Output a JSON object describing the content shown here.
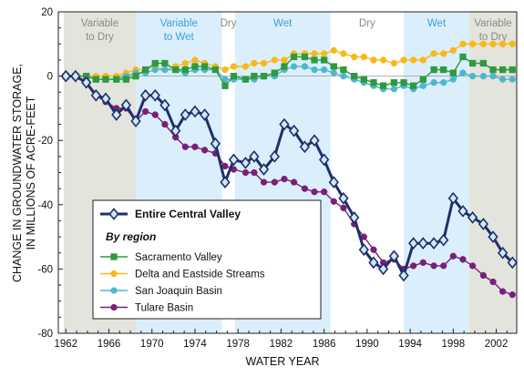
{
  "chart_data": {
    "type": "line",
    "xlabel": "WATER YEAR",
    "ylabel_lines": [
      "CHANGE IN GROUNDWATER STORAGE,",
      "IN MILLIONS OF ACRE-FEET"
    ],
    "xlim": [
      1961.3,
      2003.9
    ],
    "ylim": [
      -80,
      20
    ],
    "xticks": [
      1962,
      1966,
      1970,
      1974,
      1978,
      1982,
      1986,
      1990,
      1994,
      1998,
      2002
    ],
    "yticks": [
      -80,
      -60,
      -40,
      -20,
      0,
      20
    ],
    "periods": [
      {
        "label_lines": [
          "Variable",
          "to Dry"
        ],
        "start": 1961.8,
        "end": 1968.5,
        "fill": "#e3e4dc",
        "text_color": "#8a8a84"
      },
      {
        "label_lines": [
          "Variable",
          "to Wet"
        ],
        "start": 1968.5,
        "end": 1976.5,
        "fill": "#dbeefc",
        "text_color": "#3aa0dd"
      },
      {
        "label_lines": [
          "Dry"
        ],
        "start": 1976.5,
        "end": 1977.7,
        "fill": "#ffffff",
        "text_color": "#8a8a84"
      },
      {
        "label_lines": [
          "Wet"
        ],
        "start": 1977.7,
        "end": 1986.6,
        "fill": "#dbeefc",
        "text_color": "#3aa0dd"
      },
      {
        "label_lines": [
          "Dry"
        ],
        "start": 1986.6,
        "end": 1993.4,
        "fill": "#ffffff",
        "text_color": "#8a8a84"
      },
      {
        "label_lines": [
          "Wet"
        ],
        "start": 1993.4,
        "end": 1999.5,
        "fill": "#dbeefc",
        "text_color": "#3aa0dd"
      },
      {
        "label_lines": [
          "Variable",
          "to Dry"
        ],
        "start": 1999.5,
        "end": 2003.9,
        "fill": "#e3e4dc",
        "text_color": "#8a8a84"
      }
    ],
    "legend": {
      "title": "Entire Central Valley",
      "group_label": "By region",
      "placement": "lower-left"
    },
    "series": [
      {
        "name": "Entire Central Valley",
        "color": "#1f2f6b",
        "marker": "diamond",
        "bold": true,
        "x": [
          1962.0,
          1962.9,
          1963.9,
          1964.8,
          1965.7,
          1966.7,
          1967.6,
          1968.5,
          1969.4,
          1970.3,
          1971.2,
          1972.2,
          1973.1,
          1974.0,
          1974.9,
          1975.9,
          1976.8,
          1977.6,
          1978.7,
          1979.5,
          1980.4,
          1981.4,
          1982.3,
          1983.2,
          1984.2,
          1985.1,
          1986.0,
          1986.9,
          1987.8,
          1988.8,
          1989.7,
          1990.6,
          1991.5,
          1992.5,
          1993.4,
          1994.3,
          1995.2,
          1996.2,
          1997.1,
          1998.0,
          1998.9,
          1999.8,
          2000.8,
          2001.7,
          2002.6,
          2003.5
        ],
        "y": [
          0,
          0,
          -2,
          -6,
          -7,
          -12,
          -9,
          -14,
          -6,
          -6,
          -9,
          -17,
          -12,
          -11,
          -12,
          -21,
          -33,
          -26,
          -27,
          -25,
          -29,
          -25,
          -15,
          -17,
          -22,
          -20,
          -26,
          -33,
          -38,
          -44,
          -54,
          -58,
          -60,
          -56,
          -62,
          -52,
          -52,
          -52,
          -51,
          -38,
          -42,
          -44,
          -46,
          -50,
          -55,
          -58
        ]
      },
      {
        "name": "Sacramento Valley",
        "color": "#2e9a3e",
        "marker": "square",
        "x": [
          1962.0,
          1962.9,
          1963.9,
          1964.8,
          1965.7,
          1966.7,
          1967.6,
          1968.5,
          1969.4,
          1970.3,
          1971.2,
          1972.2,
          1973.1,
          1974.0,
          1974.9,
          1975.9,
          1976.8,
          1977.6,
          1978.7,
          1979.5,
          1980.4,
          1981.4,
          1982.3,
          1983.2,
          1984.2,
          1985.1,
          1986.0,
          1986.9,
          1987.8,
          1988.8,
          1989.7,
          1990.6,
          1991.5,
          1992.5,
          1993.4,
          1994.3,
          1995.2,
          1996.2,
          1997.1,
          1998.0,
          1998.9,
          1999.8,
          2000.8,
          2001.7,
          2002.6,
          2003.5
        ],
        "y": [
          0,
          0,
          0,
          -1,
          -1,
          -1,
          -1,
          0,
          2,
          4,
          4,
          2,
          2,
          3,
          3,
          2,
          -3,
          0,
          -1,
          0,
          0,
          1,
          3,
          6,
          6,
          5,
          5,
          3,
          2,
          0,
          -1,
          -2,
          -3,
          -2,
          -2,
          -3,
          -1,
          2,
          2,
          1,
          6,
          4,
          4,
          2,
          2,
          2
        ]
      },
      {
        "name": "Delta and Eastside Streams",
        "color": "#f7b916",
        "marker": "circle",
        "x": [
          1962.0,
          1962.9,
          1963.9,
          1964.8,
          1965.7,
          1966.7,
          1967.6,
          1968.5,
          1969.4,
          1970.3,
          1971.2,
          1972.2,
          1973.1,
          1974.0,
          1974.9,
          1975.9,
          1976.8,
          1977.6,
          1978.7,
          1979.5,
          1980.4,
          1981.4,
          1982.3,
          1983.2,
          1984.2,
          1985.1,
          1986.0,
          1986.9,
          1987.8,
          1988.8,
          1989.7,
          1990.6,
          1991.5,
          1992.5,
          1993.4,
          1994.3,
          1995.2,
          1996.2,
          1997.1,
          1998.0,
          1998.9,
          1999.8,
          2000.8,
          2001.7,
          2002.6,
          2003.5
        ],
        "y": [
          0,
          0,
          0,
          0,
          0,
          0,
          1,
          2,
          2,
          3,
          2,
          3,
          4,
          5,
          4,
          3,
          2,
          3,
          3,
          4,
          4,
          5,
          5,
          7,
          7,
          7,
          7,
          8,
          7,
          6,
          6,
          5,
          5,
          4,
          5,
          5,
          5,
          7,
          7,
          8,
          10,
          10,
          10,
          10,
          10,
          10
        ]
      },
      {
        "name": "San Joaquin Basin",
        "color": "#4cb7cf",
        "marker": "circle",
        "x": [
          1962.0,
          1962.9,
          1963.9,
          1964.8,
          1965.7,
          1966.7,
          1967.6,
          1968.5,
          1969.4,
          1970.3,
          1971.2,
          1972.2,
          1973.1,
          1974.0,
          1974.9,
          1975.9,
          1976.8,
          1977.6,
          1978.7,
          1979.5,
          1980.4,
          1981.4,
          1982.3,
          1983.2,
          1984.2,
          1985.1,
          1986.0,
          1986.9,
          1987.8,
          1988.8,
          1989.7,
          1990.6,
          1991.5,
          1992.5,
          1993.4,
          1994.3,
          1995.2,
          1996.2,
          1997.1,
          1998.0,
          1998.9,
          1999.8,
          2000.8,
          2001.7,
          2002.6,
          2003.5
        ],
        "y": [
          0,
          0,
          0,
          -1,
          -1,
          -1,
          0,
          1,
          1,
          2,
          2,
          2,
          1,
          2,
          2,
          2,
          -1,
          -1,
          -1,
          -1,
          0,
          0,
          2,
          3,
          3,
          2,
          2,
          1,
          0,
          -1,
          -2,
          -3,
          -4,
          -4,
          -3,
          -4,
          -3,
          -2,
          -2,
          -1,
          1,
          0,
          0,
          0,
          -1,
          -1
        ]
      },
      {
        "name": "Tulare Basin",
        "color": "#7a1f7a",
        "marker": "circle",
        "x": [
          1962.0,
          1962.9,
          1963.9,
          1964.8,
          1965.7,
          1966.7,
          1967.6,
          1968.5,
          1969.4,
          1970.3,
          1971.2,
          1972.2,
          1973.1,
          1974.0,
          1974.9,
          1975.9,
          1976.8,
          1977.6,
          1978.7,
          1979.5,
          1980.4,
          1981.4,
          1982.3,
          1983.2,
          1984.2,
          1985.1,
          1986.0,
          1986.9,
          1987.8,
          1988.8,
          1989.7,
          1990.6,
          1991.5,
          1992.5,
          1993.4,
          1994.3,
          1995.2,
          1996.2,
          1997.1,
          1998.0,
          1998.9,
          1999.8,
          2000.8,
          2001.7,
          2002.6,
          2003.5
        ],
        "y": [
          0,
          0,
          -2,
          -6,
          -8,
          -10,
          -10,
          -14,
          -11,
          -12,
          -15,
          -19,
          -22,
          -22,
          -23,
          -24,
          -28,
          -29,
          -30,
          -30,
          -33,
          -33,
          -32,
          -33,
          -35,
          -36,
          -36,
          -39,
          -41,
          -46,
          -50,
          -54,
          -58,
          -57,
          -60,
          -59,
          -58,
          -59,
          -59,
          -56,
          -57,
          -59,
          -62,
          -64,
          -67,
          -68
        ]
      }
    ]
  }
}
